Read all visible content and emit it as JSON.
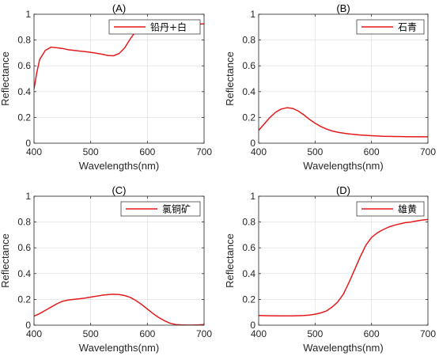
{
  "chart_data": [
    {
      "type": "line",
      "title": "(A)",
      "xlabel": "Wavelengths(nm)",
      "ylabel": "Reflectance",
      "xlim": [
        400,
        700
      ],
      "ylim": [
        0,
        1
      ],
      "xticks": [
        "400",
        "500",
        "600",
        "700"
      ],
      "yticks": [
        "0",
        "0.2",
        "0.4",
        "0.6",
        "0.8",
        "1"
      ],
      "grid": true,
      "legend_position": "top-right",
      "series": [
        {
          "name": "铅丹+白",
          "color": "#e41a1c",
          "x": [
            400,
            405,
            410,
            420,
            430,
            440,
            450,
            460,
            470,
            480,
            490,
            500,
            510,
            520,
            530,
            540,
            550,
            560,
            570,
            580,
            590,
            600,
            610,
            620,
            630,
            640,
            650,
            660,
            670,
            680,
            690,
            700
          ],
          "y": [
            0.42,
            0.55,
            0.65,
            0.72,
            0.745,
            0.74,
            0.735,
            0.725,
            0.72,
            0.715,
            0.71,
            0.705,
            0.698,
            0.69,
            0.68,
            0.678,
            0.695,
            0.74,
            0.81,
            0.87,
            0.9,
            0.915,
            0.92,
            0.925,
            0.925,
            0.925,
            0.925,
            0.925,
            0.925,
            0.925,
            0.925,
            0.925
          ]
        }
      ]
    },
    {
      "type": "line",
      "title": "(B)",
      "xlabel": "Wavelengths(nm)",
      "ylabel": "Reflectance",
      "xlim": [
        400,
        700
      ],
      "ylim": [
        0,
        1
      ],
      "xticks": [
        "400",
        "500",
        "600",
        "700"
      ],
      "yticks": [
        "0",
        "0.2",
        "0.4",
        "0.6",
        "0.8",
        "1"
      ],
      "grid": true,
      "legend_position": "top-right",
      "series": [
        {
          "name": "石青",
          "color": "#e41a1c",
          "x": [
            400,
            410,
            420,
            430,
            440,
            450,
            460,
            470,
            480,
            490,
            500,
            510,
            520,
            530,
            540,
            550,
            560,
            580,
            600,
            620,
            640,
            660,
            680,
            700
          ],
          "y": [
            0.1,
            0.15,
            0.2,
            0.24,
            0.265,
            0.275,
            0.27,
            0.25,
            0.22,
            0.185,
            0.155,
            0.13,
            0.11,
            0.095,
            0.085,
            0.078,
            0.072,
            0.064,
            0.058,
            0.054,
            0.052,
            0.051,
            0.05,
            0.05
          ]
        }
      ]
    },
    {
      "type": "line",
      "title": "(C)",
      "xlabel": "Wavelengths(nm)",
      "ylabel": "Reflectance",
      "xlim": [
        400,
        700
      ],
      "ylim": [
        0,
        1
      ],
      "xticks": [
        "400",
        "500",
        "600",
        "700"
      ],
      "yticks": [
        "0",
        "0.2",
        "0.4",
        "0.6",
        "0.8",
        "1"
      ],
      "grid": true,
      "legend_position": "top-right",
      "series": [
        {
          "name": "氯铜矿",
          "color": "#e41a1c",
          "x": [
            400,
            410,
            420,
            430,
            440,
            450,
            460,
            470,
            480,
            490,
            500,
            510,
            520,
            530,
            540,
            550,
            560,
            570,
            580,
            590,
            600,
            610,
            620,
            630,
            640,
            650,
            660,
            670,
            680,
            690,
            700
          ],
          "y": [
            0.07,
            0.09,
            0.115,
            0.14,
            0.165,
            0.185,
            0.195,
            0.2,
            0.205,
            0.21,
            0.218,
            0.225,
            0.232,
            0.237,
            0.24,
            0.238,
            0.23,
            0.215,
            0.19,
            0.16,
            0.125,
            0.09,
            0.06,
            0.035,
            0.015,
            0.005,
            0.002,
            0.001,
            0.001,
            0.002,
            0.005
          ]
        }
      ]
    },
    {
      "type": "line",
      "title": "(D)",
      "xlabel": "Wavelengths(nm)",
      "ylabel": "Reflectance",
      "xlim": [
        400,
        700
      ],
      "ylim": [
        0,
        1
      ],
      "xticks": [
        "400",
        "500",
        "600",
        "700"
      ],
      "yticks": [
        "0",
        "0.2",
        "0.4",
        "0.6",
        "0.8",
        "1"
      ],
      "grid": true,
      "legend_position": "top-right",
      "series": [
        {
          "name": "雄黄",
          "color": "#e41a1c",
          "x": [
            400,
            420,
            440,
            460,
            480,
            490,
            500,
            510,
            520,
            530,
            540,
            550,
            560,
            570,
            580,
            590,
            600,
            610,
            620,
            630,
            640,
            650,
            660,
            670,
            680,
            690,
            700
          ],
          "y": [
            0.075,
            0.073,
            0.072,
            0.072,
            0.075,
            0.078,
            0.085,
            0.095,
            0.11,
            0.14,
            0.18,
            0.24,
            0.33,
            0.43,
            0.53,
            0.62,
            0.68,
            0.715,
            0.74,
            0.76,
            0.775,
            0.785,
            0.795,
            0.8,
            0.808,
            0.815,
            0.82
          ]
        }
      ]
    }
  ]
}
